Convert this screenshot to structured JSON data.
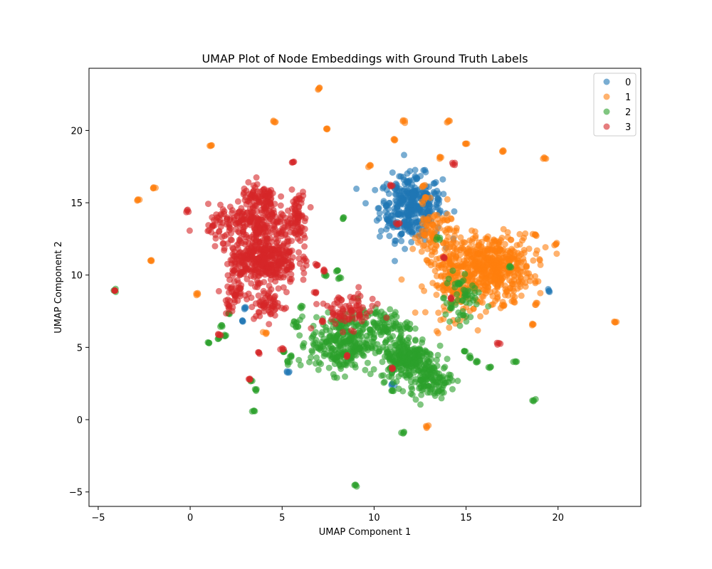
{
  "chart_data": {
    "type": "scatter",
    "title": "UMAP Plot of Node Embeddings with Ground Truth Labels",
    "xlabel": "UMAP Component 1",
    "ylabel": "UMAP Component 2",
    "xlim": [
      -5.5,
      24.5
    ],
    "ylim": [
      -6.0,
      24.3
    ],
    "xticks": [
      -5,
      0,
      5,
      10,
      15,
      20
    ],
    "yticks": [
      -5,
      0,
      5,
      10,
      15,
      20
    ],
    "xtick_labels": [
      "−5",
      "0",
      "5",
      "10",
      "15",
      "20"
    ],
    "ytick_labels": [
      "−5",
      "0",
      "5",
      "10",
      "15",
      "20"
    ],
    "grid": false,
    "legend_position": "top-right",
    "marker_opacity": 0.6,
    "series": [
      {
        "name": "0",
        "color": "#1f77b4",
        "points": [
          [
            11.6,
            15.2
          ],
          [
            11.4,
            14.2
          ],
          [
            12.2,
            15.8
          ],
          [
            11.0,
            13.5
          ],
          [
            12.5,
            14.6
          ],
          [
            11.8,
            16.5
          ],
          [
            12.8,
            15.6
          ],
          [
            11.2,
            16.0
          ],
          [
            10.7,
            14.8
          ],
          [
            12.0,
            13.0
          ],
          [
            12.9,
            13.8
          ],
          [
            11.5,
            12.8
          ],
          [
            13.5,
            15.3
          ],
          [
            10.8,
            13.8
          ],
          [
            12.3,
            16.7
          ],
          [
            2.8,
            6.8
          ],
          [
            3.0,
            7.7
          ],
          [
            5.3,
            3.3
          ],
          [
            19.5,
            8.9
          ],
          [
            11.0,
            2.4
          ]
        ],
        "clusters": [
          {
            "cx": 12.0,
            "cy": 14.7,
            "sx": 0.85,
            "sy": 1.1,
            "n": 320
          }
        ]
      },
      {
        "name": "1",
        "color": "#ff7f0e",
        "points": [
          [
            7.0,
            22.9
          ],
          [
            4.6,
            20.6
          ],
          [
            7.4,
            20.1
          ],
          [
            11.6,
            20.6
          ],
          [
            14.1,
            20.6
          ],
          [
            11.1,
            19.4
          ],
          [
            15.0,
            19.1
          ],
          [
            1.1,
            18.9
          ],
          [
            13.6,
            18.1
          ],
          [
            17.0,
            18.5
          ],
          [
            19.3,
            18.1
          ],
          [
            9.8,
            17.6
          ],
          [
            -2.0,
            16.0
          ],
          [
            -2.8,
            15.2
          ],
          [
            -2.1,
            11.0
          ],
          [
            0.4,
            8.7
          ],
          [
            4.1,
            6.0
          ],
          [
            12.9,
            -0.5
          ],
          [
            23.1,
            6.8
          ],
          [
            18.6,
            6.6
          ],
          [
            17.6,
            8.2
          ],
          [
            18.8,
            8.0
          ],
          [
            19.9,
            12.1
          ],
          [
            18.8,
            12.8
          ],
          [
            12.7,
            16.2
          ],
          [
            12.8,
            15.3
          ],
          [
            13.3,
            12.6
          ],
          [
            17.0,
            7.9
          ]
        ],
        "clusters": [
          {
            "cx": 16.3,
            "cy": 10.6,
            "sx": 1.15,
            "sy": 1.1,
            "n": 500
          },
          {
            "cx": 14.5,
            "cy": 9.5,
            "sx": 0.8,
            "sy": 1.2,
            "n": 160
          },
          {
            "cx": 13.3,
            "cy": 12.9,
            "sx": 0.6,
            "sy": 0.9,
            "n": 90
          }
        ]
      },
      {
        "name": "2",
        "color": "#2ca02c",
        "points": [
          [
            8.3,
            13.9
          ],
          [
            9.0,
            -4.5
          ],
          [
            11.6,
            -0.9
          ],
          [
            3.5,
            0.6
          ],
          [
            18.7,
            1.3
          ],
          [
            17.7,
            4.0
          ],
          [
            16.3,
            3.6
          ],
          [
            -4.1,
            8.9
          ],
          [
            1.7,
            6.5
          ],
          [
            2.1,
            7.3
          ],
          [
            1.0,
            5.3
          ],
          [
            1.5,
            5.6
          ],
          [
            1.9,
            5.8
          ],
          [
            3.6,
            2.1
          ],
          [
            3.3,
            2.7
          ],
          [
            10.9,
            3.5
          ],
          [
            11.0,
            2.0
          ],
          [
            15.2,
            4.3
          ],
          [
            14.9,
            4.7
          ],
          [
            15.6,
            4.0
          ],
          [
            5.1,
            4.7
          ],
          [
            5.3,
            4.0
          ],
          [
            5.5,
            4.4
          ],
          [
            7.4,
            10.0
          ],
          [
            8.0,
            10.3
          ],
          [
            8.1,
            9.8
          ],
          [
            5.7,
            6.7
          ],
          [
            13.5,
            12.5
          ],
          [
            14.6,
            9.4
          ],
          [
            15.0,
            8.6
          ],
          [
            17.4,
            10.5
          ],
          [
            14.2,
            7.8
          ],
          [
            6.0,
            7.8
          ],
          [
            5.8,
            6.4
          ]
        ],
        "clusters": [
          {
            "cx": 8.3,
            "cy": 5.3,
            "sx": 0.9,
            "sy": 1.0,
            "n": 300
          },
          {
            "cx": 11.8,
            "cy": 4.3,
            "sx": 0.75,
            "sy": 0.8,
            "n": 240
          },
          {
            "cx": 13.1,
            "cy": 2.7,
            "sx": 0.55,
            "sy": 0.55,
            "n": 110
          },
          {
            "cx": 10.5,
            "cy": 6.6,
            "sx": 0.7,
            "sy": 0.5,
            "n": 80
          },
          {
            "cx": 14.8,
            "cy": 8.3,
            "sx": 0.5,
            "sy": 1.1,
            "n": 50
          }
        ]
      },
      {
        "name": "3",
        "color": "#d62728",
        "points": [
          [
            5.6,
            17.8
          ],
          [
            -0.2,
            14.5
          ],
          [
            1.2,
            13.4
          ],
          [
            -4.1,
            8.9
          ],
          [
            14.3,
            17.7
          ],
          [
            16.7,
            5.3
          ],
          [
            10.9,
            16.2
          ],
          [
            3.7,
            4.6
          ],
          [
            3.2,
            2.8
          ],
          [
            5.0,
            4.9
          ],
          [
            7.3,
            10.3
          ],
          [
            13.8,
            11.2
          ],
          [
            14.2,
            8.4
          ],
          [
            6.8,
            8.8
          ],
          [
            2.1,
            7.9
          ],
          [
            2.4,
            8.6
          ],
          [
            1.6,
            5.9
          ],
          [
            11.0,
            3.5
          ],
          [
            11.3,
            13.6
          ],
          [
            6.9,
            10.7
          ],
          [
            7.2,
            6.8
          ],
          [
            8.5,
            4.4
          ]
        ],
        "clusters": [
          {
            "cx": 4.0,
            "cy": 11.2,
            "sx": 0.9,
            "sy": 0.9,
            "n": 400
          },
          {
            "cx": 3.4,
            "cy": 13.6,
            "sx": 1.2,
            "sy": 0.6,
            "n": 200
          },
          {
            "cx": 3.8,
            "cy": 15.2,
            "sx": 0.5,
            "sy": 0.6,
            "n": 90
          },
          {
            "cx": 5.8,
            "cy": 14.2,
            "sx": 0.25,
            "sy": 0.8,
            "n": 70
          },
          {
            "cx": 2.4,
            "cy": 9.0,
            "sx": 0.3,
            "sy": 0.7,
            "n": 50
          },
          {
            "cx": 4.3,
            "cy": 8.0,
            "sx": 0.4,
            "sy": 0.6,
            "n": 60
          },
          {
            "cx": 8.5,
            "cy": 7.5,
            "sx": 0.8,
            "sy": 0.6,
            "n": 80
          }
        ]
      }
    ]
  }
}
